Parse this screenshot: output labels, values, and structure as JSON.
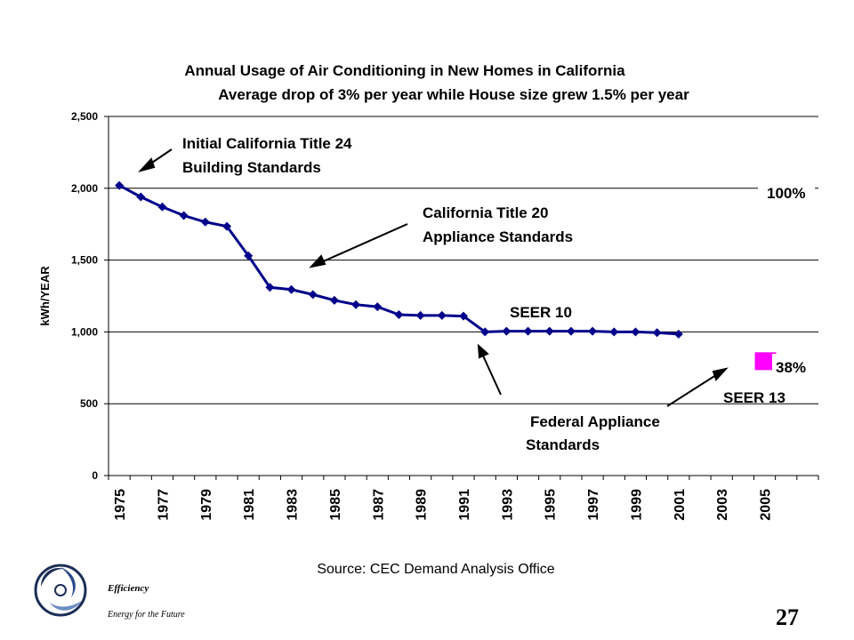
{
  "chart_data": {
    "type": "line",
    "title": "Annual Usage of Air Conditioning in New Homes in California",
    "subtitle": "Average drop of 3% per year while House size grew 1.5% per year",
    "ylabel": "kWh/YEAR",
    "xlabel": "",
    "ylim": [
      0,
      2500
    ],
    "yticks": [
      "0",
      "500",
      "1,000",
      "1,500",
      "2,000",
      "2,500"
    ],
    "ytick_values": [
      0,
      500,
      1000,
      1500,
      2000,
      2500
    ],
    "xticks": [
      "1975",
      "1977",
      "1979",
      "1981",
      "1983",
      "1985",
      "1987",
      "1989",
      "1991",
      "1993",
      "1995",
      "1997",
      "1999",
      "2001",
      "2003",
      "2005"
    ],
    "xlim": [
      1975,
      2007
    ],
    "grid": "horizontal",
    "series": [
      {
        "color": "#00008B",
        "x": [
          1975,
          1976,
          1977,
          1978,
          1979,
          1980,
          1981,
          1982,
          1983,
          1984,
          1985,
          1986,
          1987,
          1988,
          1989,
          1990,
          1991,
          1992,
          1993,
          1994,
          1995,
          1996,
          1997,
          1998,
          1999,
          2000,
          2001
        ],
        "y": [
          2020,
          1940,
          1870,
          1810,
          1765,
          1735,
          1530,
          1310,
          1295,
          1260,
          1220,
          1190,
          1175,
          1120,
          1115,
          1115,
          1110,
          1000,
          1005,
          1005,
          1005,
          1005,
          1005,
          1000,
          1000,
          995,
          985
        ]
      }
    ],
    "marker": {
      "x": 2005,
      "y": 790,
      "color": "#FF00FF"
    },
    "annotations": {
      "title24_line1": "Initial California Title 24",
      "title24_line2": "Building Standards",
      "title20_line1": "California Title 20",
      "title20_line2": "Appliance Standards",
      "seer10": "SEER 10",
      "federal_line1": "Federal Appliance",
      "federal_line2": "Standards",
      "pct100": "100%",
      "pct38": "38%",
      "seer13": "SEER 13"
    },
    "source": "Source: CEC Demand Analysis Office"
  },
  "footer": {
    "tagline1": "Efficiency",
    "tagline2": "Energy for the Future",
    "page_number": "27"
  },
  "colors": {
    "line": "#00008B",
    "marker": "#FF00FF",
    "grid": "#000000"
  }
}
